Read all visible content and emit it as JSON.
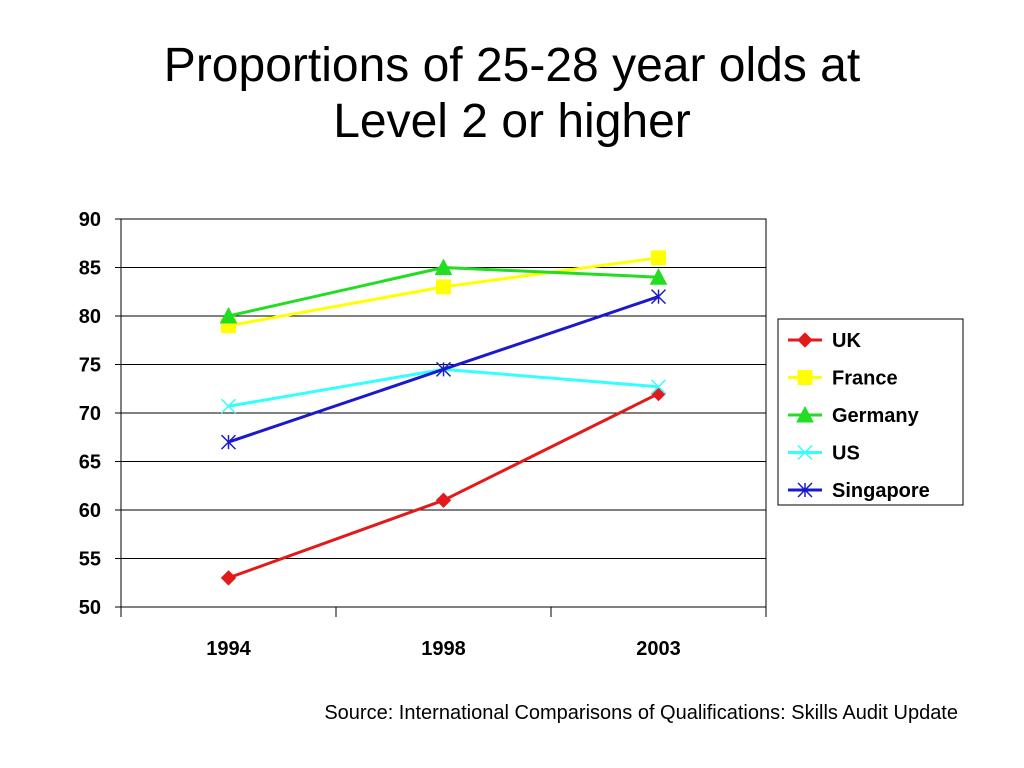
{
  "slide": {
    "title_line1": "Proportions of 25-28 year olds at",
    "title_line2": "Level 2 or higher",
    "source": "Source: International Comparisons of Qualifications: Skills Audit Update"
  },
  "chart_data": {
    "type": "line",
    "title": "Proportions of 25-28 year olds at Level 2 or higher",
    "xlabel": "",
    "ylabel": "",
    "categories": [
      "1994",
      "1998",
      "2003"
    ],
    "ylim": [
      50,
      90
    ],
    "yticks": [
      50,
      55,
      60,
      65,
      70,
      75,
      80,
      85,
      90
    ],
    "grid": "horizontal",
    "legend_position": "right",
    "series": [
      {
        "name": "UK",
        "values": [
          53,
          61,
          72
        ],
        "color": "#e31a1c",
        "marker": "diamond"
      },
      {
        "name": "France",
        "values": [
          79,
          83,
          86
        ],
        "color": "#ffff00",
        "marker": "square"
      },
      {
        "name": "Germany",
        "values": [
          80,
          85,
          84
        ],
        "color": "#22dd22",
        "marker": "triangle"
      },
      {
        "name": "US",
        "values": [
          70.7,
          74.5,
          72.7
        ],
        "color": "#33ffff",
        "marker": "x"
      },
      {
        "name": "Singapore",
        "values": [
          67,
          74.5,
          82
        ],
        "color": "#1a1acc",
        "marker": "asterisk"
      }
    ]
  }
}
